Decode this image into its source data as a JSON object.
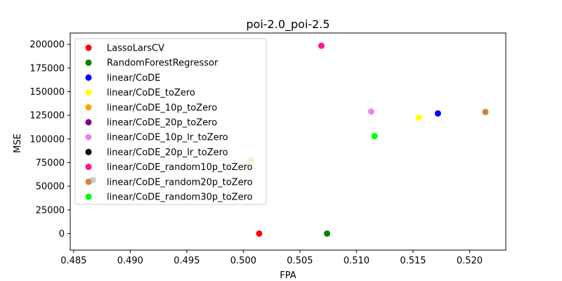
{
  "chart_data": {
    "type": "scatter",
    "title": "poi-2.0_poi-2.5",
    "xlabel": "FPA",
    "ylabel": "MSE",
    "xlim": [
      0.4847,
      0.5232
    ],
    "ylim": [
      -17500,
      212000
    ],
    "xticks": [
      "0.485",
      "0.490",
      "0.495",
      "0.500",
      "0.505",
      "0.510",
      "0.515",
      "0.520"
    ],
    "xtick_values": [
      0.485,
      0.49,
      0.495,
      0.5,
      0.505,
      0.51,
      0.515,
      0.52
    ],
    "yticks": [
      "0",
      "25000",
      "50000",
      "75000",
      "100000",
      "125000",
      "150000",
      "175000",
      "200000"
    ],
    "ytick_values": [
      0,
      25000,
      50000,
      75000,
      100000,
      125000,
      150000,
      175000,
      200000
    ],
    "grid": false,
    "legend_position": "upper-left",
    "series": [
      {
        "name": "LassoLarsCV",
        "color": "#ff0000",
        "x": [
          0.5014
        ],
        "y": [
          0
        ]
      },
      {
        "name": "RandomForestRegressor",
        "color": "#008000",
        "x": [
          0.5074
        ],
        "y": [
          0
        ]
      },
      {
        "name": "linear/CoDE",
        "color": "#0000ff",
        "x": [
          0.5172
        ],
        "y": [
          127000
        ]
      },
      {
        "name": "linear/CoDE_toZero",
        "color": "#ffff00",
        "x": [
          0.5155
        ],
        "y": [
          122500
        ]
      },
      {
        "name": "linear/CoDE_10p_toZero",
        "color": "#ffa500",
        "x": [
          0.5007
        ],
        "y": [
          77500
        ]
      },
      {
        "name": "linear/CoDE_20p_toZero",
        "color": "#800080",
        "x": [
          0.4867
        ],
        "y": [
          56500
        ]
      },
      {
        "name": "linear/CoDE_10p_lr_toZero",
        "color": "#ee82ee",
        "x": [
          0.5113
        ],
        "y": [
          129000
        ]
      },
      {
        "name": "linear/CoDE_20p_lr_toZero",
        "color": "#000000",
        "x": [
          0.4867
        ],
        "y": [
          56500
        ]
      },
      {
        "name": "linear/CoDE_random10p_toZero",
        "color": "#ff1493",
        "x": [
          0.5069
        ],
        "y": [
          198500
        ]
      },
      {
        "name": "linear/CoDE_random20p_toZero",
        "color": "#cd853f",
        "x": [
          0.5214
        ],
        "y": [
          128500
        ]
      },
      {
        "name": "linear/CoDE_random30p_toZero",
        "color": "#00ff00",
        "x": [
          0.5116
        ],
        "y": [
          103000
        ]
      }
    ],
    "extra_points": [
      {
        "color": "#c0c0c0",
        "x": 0.4867,
        "y": 56500
      },
      {
        "color": "#ffc0cb",
        "x": 0.5,
        "y": 56500
      }
    ]
  }
}
